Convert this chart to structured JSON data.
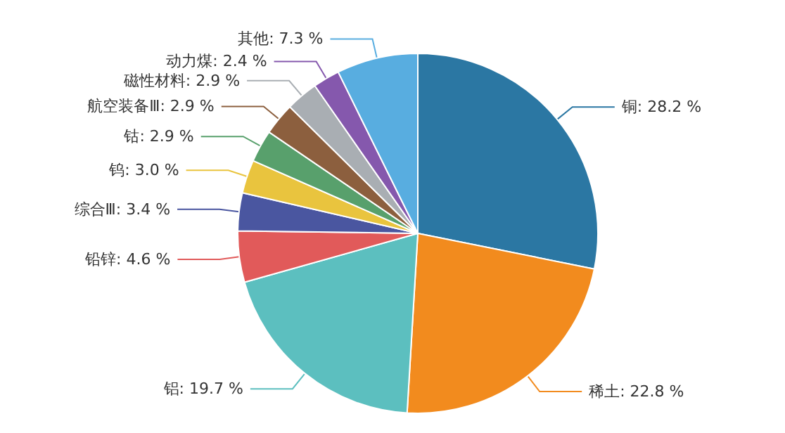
{
  "chart_data": {
    "type": "pie",
    "categories": [
      "铜",
      "稀土",
      "铝",
      "铅锌",
      "综合Ⅲ",
      "钨",
      "钴",
      "航空装备Ⅲ",
      "磁性材料",
      "动力煤",
      "其他"
    ],
    "values": [
      28.2,
      22.8,
      19.7,
      4.6,
      3.4,
      3.0,
      2.9,
      2.9,
      2.9,
      2.4,
      7.3
    ],
    "colors": [
      "#2b77a3",
      "#f28b1e",
      "#5cbfbf",
      "#e15a5a",
      "#4a56a0",
      "#e9c43e",
      "#58a06c",
      "#8c5f3e",
      "#a9aeb3",
      "#8558ad",
      "#58ade0"
    ],
    "value_labels": [
      "28.2 %",
      "22.8 %",
      "19.7 %",
      "4.6 %",
      "3.4 %",
      "3.0 %",
      "2.9 %",
      "2.9 %",
      "2.9 %",
      "2.4 %",
      "7.3 %"
    ],
    "legend": false
  }
}
